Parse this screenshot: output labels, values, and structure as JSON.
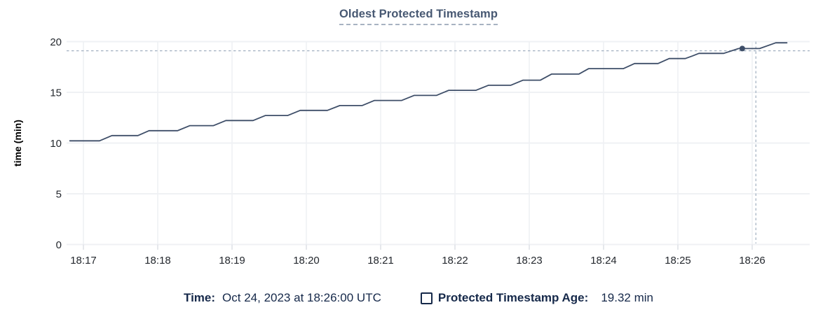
{
  "chart": {
    "title": "Oldest Protected Timestamp"
  },
  "chart_data": {
    "type": "line",
    "title": "Oldest Protected Timestamp",
    "xlabel": "",
    "ylabel": "time (min)",
    "ylim": [
      0,
      20
    ],
    "y_ticks": [
      0,
      5,
      10,
      15,
      20
    ],
    "x_ticks": [
      "18:17",
      "18:18",
      "18:19",
      "18:20",
      "18:21",
      "18:22",
      "18:23",
      "18:24",
      "18:25",
      "18:26"
    ],
    "grid": true,
    "legend_position": "bottom",
    "series": [
      {
        "name": "Protected Timestamp Age",
        "unit": "min",
        "points_t_seconds_after_18_17": [
          [
            -11,
            10.22
          ],
          [
            13,
            10.22
          ],
          [
            23,
            10.74
          ],
          [
            44,
            10.74
          ],
          [
            53,
            11.22
          ],
          [
            76,
            11.22
          ],
          [
            86,
            11.72
          ],
          [
            105,
            11.72
          ],
          [
            115,
            12.22
          ],
          [
            137,
            12.22
          ],
          [
            147,
            12.72
          ],
          [
            165,
            12.72
          ],
          [
            175,
            13.22
          ],
          [
            197,
            13.22
          ],
          [
            207,
            13.7
          ],
          [
            225,
            13.7
          ],
          [
            235,
            14.2
          ],
          [
            257,
            14.2
          ],
          [
            267,
            14.7
          ],
          [
            285,
            14.7
          ],
          [
            295,
            15.2
          ],
          [
            317,
            15.2
          ],
          [
            327,
            15.7
          ],
          [
            345,
            15.7
          ],
          [
            355,
            16.2
          ],
          [
            369,
            16.2
          ],
          [
            378,
            16.8
          ],
          [
            400,
            16.8
          ],
          [
            408,
            17.34
          ],
          [
            436,
            17.34
          ],
          [
            445,
            17.84
          ],
          [
            464,
            17.84
          ],
          [
            473,
            18.33
          ],
          [
            486,
            18.33
          ],
          [
            492,
            18.6
          ],
          [
            497,
            18.84
          ],
          [
            517,
            18.84
          ],
          [
            529,
            19.32
          ],
          [
            546,
            19.32
          ],
          [
            559,
            19.88
          ],
          [
            568,
            19.88
          ]
        ]
      }
    ],
    "cursor": {
      "hovered_time": "18:26:00",
      "hovered_value_min": 19.32,
      "dot_t_seconds": 532,
      "crosshair_x_t_seconds": 543,
      "crosshair_y_value_min": 19.1
    }
  },
  "legend": {
    "time_label": "Time:",
    "time_value": "Oct 24, 2023 at 18:26:00 UTC",
    "series_label": "Protected Timestamp Age:",
    "series_value": "19.32 min",
    "checkbox_state": "unchecked"
  },
  "colors": {
    "title": "#475872",
    "series_line": "#3e4e68",
    "legend_text": "#16294a",
    "grid": "#eff1f4",
    "tick_stub": "#dfe2e8",
    "crosshair": "#a6b4c4",
    "tick_text": "#24282e",
    "axis_label_text": "#000000",
    "background": "#ffffff"
  }
}
